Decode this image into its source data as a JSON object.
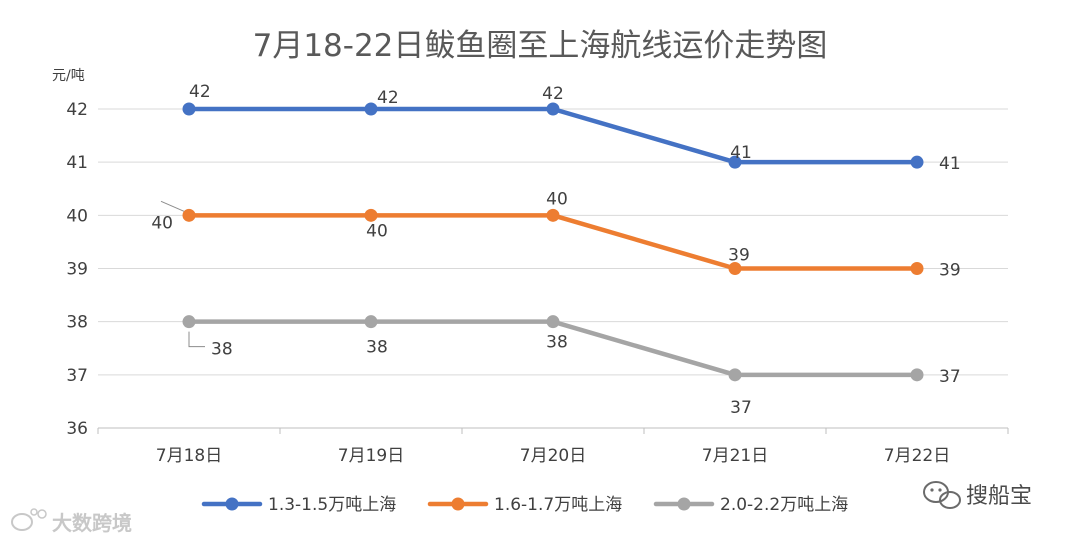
{
  "chart_data": {
    "type": "line",
    "title": "7月18-22日鲅鱼圈至上海航线运价走势图",
    "ylabel": "元/吨",
    "xlabel": "",
    "categories": [
      "7月18日",
      "7月19日",
      "7月20日",
      "7月21日",
      "7月22日"
    ],
    "ylim": [
      36,
      42
    ],
    "yticks": [
      36,
      37,
      38,
      39,
      40,
      41,
      42
    ],
    "grid": true,
    "legend_position": "bottom",
    "series": [
      {
        "name": "1.3-1.5万吨上海",
        "values": [
          42,
          42,
          42,
          41,
          41
        ],
        "color": "#4472C4"
      },
      {
        "name": "1.6-1.7万吨上海",
        "values": [
          40,
          40,
          40,
          39,
          39
        ],
        "color": "#ED7D31"
      },
      {
        "name": "2.0-2.2万吨上海",
        "values": [
          38,
          38,
          38,
          37,
          37
        ],
        "color": "#A5A5A5"
      }
    ]
  },
  "watermark_left": "大数跨境",
  "watermark_right": "搜船宝"
}
